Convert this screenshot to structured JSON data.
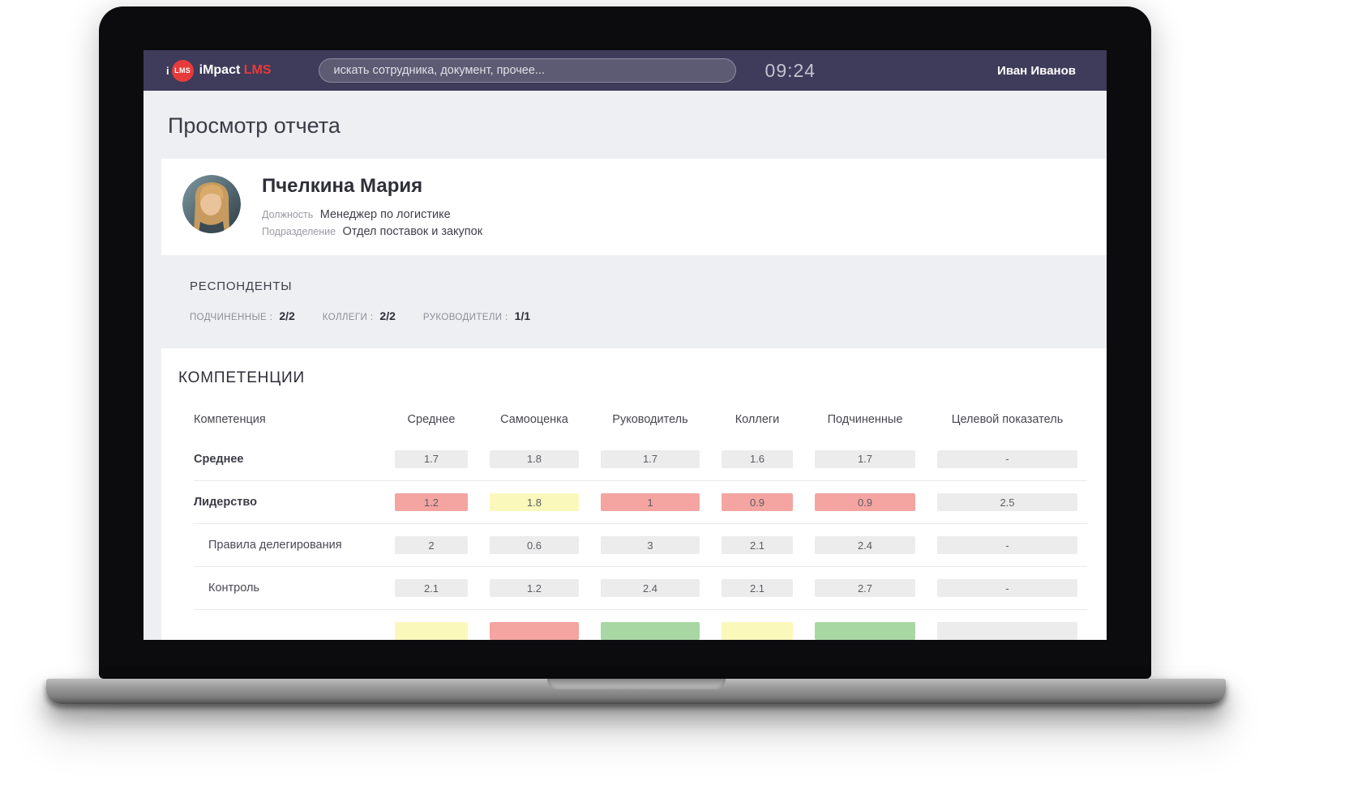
{
  "topbar": {
    "logo_i": "i",
    "logo_badge": "LMS",
    "brand_first": "iMpact",
    "brand_second": "LMS",
    "search_placeholder": "искать сотрудника, документ, прочее...",
    "time": "09:24",
    "user_name": "Иван Иванов"
  },
  "page_title": "Просмотр отчета",
  "profile": {
    "name": "Пчелкина Мария",
    "position_label": "Должность",
    "position_value": "Менеджер по логистике",
    "department_label": "Подразделение",
    "department_value": "Отдел поставок и закупок"
  },
  "respondents": {
    "title": "РЕСПОНДЕНТЫ",
    "stats": [
      {
        "label": "ПОДЧИНЕННЫЕ :",
        "value": "2/2"
      },
      {
        "label": "КОЛЛЕГИ :",
        "value": "2/2"
      },
      {
        "label": "РУКОВОДИТЕЛИ :",
        "value": "1/1"
      }
    ]
  },
  "competencies": {
    "title": "КОМПЕТЕНЦИИ",
    "columns": [
      "Компетенция",
      "Среднее",
      "Самооценка",
      "Руководитель",
      "Коллеги",
      "Подчиненные",
      "Целевой показатель"
    ],
    "rows": [
      {
        "name": "Среднее",
        "style": "group",
        "cells": [
          {
            "value": "1.7",
            "color": "gray"
          },
          {
            "value": "1.8",
            "color": "gray"
          },
          {
            "value": "1.7",
            "color": "gray"
          },
          {
            "value": "1.6",
            "color": "gray"
          },
          {
            "value": "1.7",
            "color": "gray"
          },
          {
            "value": "-",
            "color": "gray"
          }
        ]
      },
      {
        "name": "Лидерство",
        "style": "group",
        "cells": [
          {
            "value": "1.2",
            "color": "red"
          },
          {
            "value": "1.8",
            "color": "yellow"
          },
          {
            "value": "1",
            "color": "red"
          },
          {
            "value": "0.9",
            "color": "red"
          },
          {
            "value": "0.9",
            "color": "red"
          },
          {
            "value": "2.5",
            "color": "gray"
          }
        ]
      },
      {
        "name": "Правила делегирования",
        "style": "sub",
        "cells": [
          {
            "value": "2",
            "color": "gray"
          },
          {
            "value": "0.6",
            "color": "gray"
          },
          {
            "value": "3",
            "color": "gray"
          },
          {
            "value": "2.1",
            "color": "gray"
          },
          {
            "value": "2.4",
            "color": "gray"
          },
          {
            "value": "-",
            "color": "gray"
          }
        ]
      },
      {
        "name": "Контроль",
        "style": "sub",
        "cells": [
          {
            "value": "2.1",
            "color": "gray"
          },
          {
            "value": "1.2",
            "color": "gray"
          },
          {
            "value": "2.4",
            "color": "gray"
          },
          {
            "value": "2.1",
            "color": "gray"
          },
          {
            "value": "2.7",
            "color": "gray"
          },
          {
            "value": "-",
            "color": "gray"
          }
        ]
      },
      {
        "name": "",
        "style": "sub",
        "cells": [
          {
            "value": "",
            "color": "yellow"
          },
          {
            "value": "",
            "color": "red"
          },
          {
            "value": "",
            "color": "green"
          },
          {
            "value": "",
            "color": "yellow"
          },
          {
            "value": "",
            "color": "green"
          },
          {
            "value": "",
            "color": "gray"
          }
        ]
      }
    ]
  },
  "colors": {
    "topbar": "#3f3b5a",
    "accent_red": "#e73b3b",
    "cell_gray": "#ececec",
    "cell_red": "#f4a5a1",
    "cell_yellow": "#fbf8bc",
    "cell_green": "#a9d7a4"
  }
}
